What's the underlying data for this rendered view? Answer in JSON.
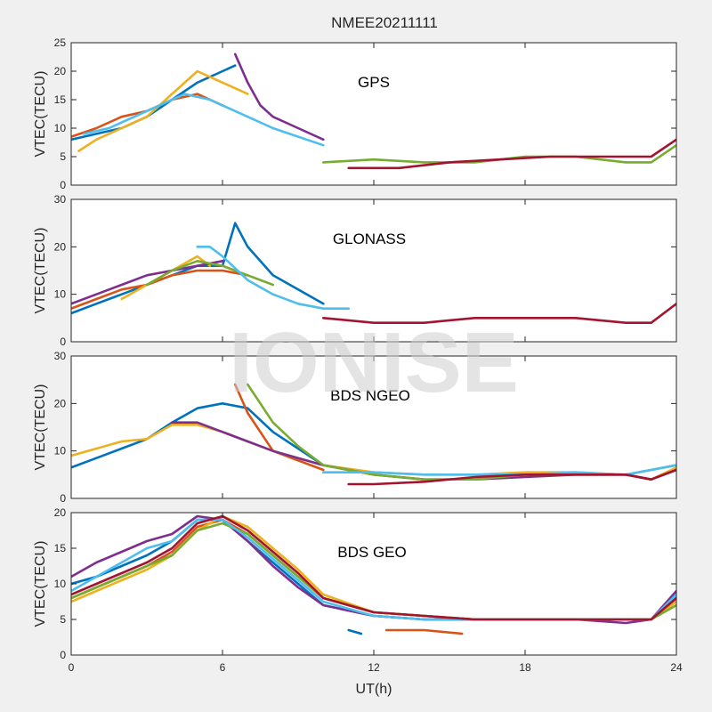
{
  "title": "NMEE20211111",
  "watermark": "IONISE",
  "xlabel": "UT(h)",
  "xlim": [
    0,
    24
  ],
  "xticks": [
    0,
    6,
    12,
    18,
    24
  ],
  "colors": [
    "#0072BD",
    "#D95319",
    "#EDB120",
    "#7E2F8E",
    "#77AC30",
    "#4DBEEE",
    "#A2142F"
  ],
  "chart_data": [
    {
      "type": "line",
      "label": "GPS",
      "ylabel": "VTEC(TECU)",
      "ylim": [
        0,
        25
      ],
      "yticks": [
        0,
        5,
        10,
        15,
        20,
        25
      ],
      "series": [
        {
          "x": [
            0,
            1,
            2,
            3,
            4,
            5,
            6,
            6.5
          ],
          "y": [
            8,
            9,
            10,
            12,
            15,
            18,
            20,
            21
          ]
        },
        {
          "x": [
            0,
            1,
            2,
            3,
            4,
            5,
            6
          ],
          "y": [
            8.5,
            10,
            12,
            13,
            15,
            16,
            14
          ]
        },
        {
          "x": [
            0.3,
            1,
            2,
            3,
            4,
            5,
            6,
            7
          ],
          "y": [
            6,
            8,
            10,
            12,
            16,
            20,
            18,
            16
          ]
        },
        {
          "x": [
            6.5,
            7,
            7.5,
            8,
            9,
            10
          ],
          "y": [
            23,
            18,
            14,
            12,
            10,
            8
          ]
        },
        {
          "x": [
            10,
            12,
            14,
            16,
            18,
            20,
            22,
            23,
            24
          ],
          "y": [
            4,
            4.5,
            4,
            4,
            5,
            5,
            4,
            4,
            7
          ]
        },
        {
          "x": [
            0.5,
            1.5,
            2.5,
            3.5,
            4.5,
            5.5,
            6.5,
            8,
            10
          ],
          "y": [
            9,
            10,
            12,
            14,
            16,
            15,
            13,
            10,
            7
          ]
        },
        {
          "x": [
            11,
            13,
            15,
            17,
            19,
            21,
            22,
            23,
            24
          ],
          "y": [
            3,
            3,
            4,
            4.5,
            5,
            5,
            5,
            5,
            8
          ]
        }
      ]
    },
    {
      "type": "line",
      "label": "GLONASS",
      "ylabel": "VTEC(TECU)",
      "ylim": [
        0,
        30
      ],
      "yticks": [
        0,
        10,
        20,
        30
      ],
      "series": [
        {
          "x": [
            0,
            1,
            2,
            3,
            4,
            5,
            6,
            6.5,
            7,
            8,
            10
          ],
          "y": [
            6,
            8,
            10,
            12,
            14,
            16,
            16,
            25,
            20,
            14,
            8
          ]
        },
        {
          "x": [
            0,
            1,
            2,
            3,
            4,
            5,
            6,
            7
          ],
          "y": [
            7,
            9,
            11,
            12,
            14,
            15,
            15,
            14
          ]
        },
        {
          "x": [
            2,
            3,
            4,
            5,
            5.5
          ],
          "y": [
            9,
            12,
            15,
            18,
            16
          ]
        },
        {
          "x": [
            0,
            1,
            2,
            3,
            4,
            5,
            6
          ],
          "y": [
            8,
            10,
            12,
            14,
            15,
            16,
            17
          ]
        },
        {
          "x": [
            3,
            4,
            5,
            6,
            7,
            8
          ],
          "y": [
            12,
            15,
            17,
            16,
            14,
            12
          ]
        },
        {
          "x": [
            5,
            5.5,
            6,
            7,
            8,
            9,
            10,
            11
          ],
          "y": [
            20,
            20,
            18,
            13,
            10,
            8,
            7,
            7
          ]
        },
        {
          "x": [
            10,
            12,
            14,
            16,
            18,
            20,
            22,
            23,
            24
          ],
          "y": [
            5,
            4,
            4,
            5,
            5,
            5,
            4,
            4,
            8
          ]
        }
      ]
    },
    {
      "type": "line",
      "label": "BDS NGEO",
      "ylabel": "VTEC(TECU)",
      "ylim": [
        0,
        30
      ],
      "yticks": [
        0,
        10,
        20,
        30
      ],
      "series": [
        {
          "x": [
            0,
            1,
            2,
            3,
            4,
            5,
            6,
            7,
            8,
            10
          ],
          "y": [
            6.5,
            8.5,
            10.5,
            12.5,
            16,
            19,
            20,
            19,
            14,
            7
          ]
        },
        {
          "x": [
            6.5,
            7,
            7.5,
            8,
            10
          ],
          "y": [
            24,
            18,
            14,
            10,
            6
          ]
        },
        {
          "x": [
            0,
            1,
            2,
            3,
            4,
            5,
            6,
            7,
            8,
            10,
            12,
            14,
            16,
            18,
            20,
            22,
            23,
            24
          ],
          "y": [
            9,
            10.5,
            12,
            12.5,
            15.5,
            15.5,
            14,
            12,
            10,
            7,
            5.5,
            5,
            5,
            5.5,
            5.5,
            5,
            4,
            6.5
          ]
        },
        {
          "x": [
            4,
            5,
            6,
            7,
            8,
            10,
            12,
            14,
            16,
            18,
            20,
            22,
            23,
            24
          ],
          "y": [
            16,
            16,
            14,
            12,
            10,
            7,
            5,
            4,
            4,
            4.5,
            5,
            5,
            4,
            6
          ]
        },
        {
          "x": [
            7,
            7.5,
            8,
            9,
            10,
            12,
            14,
            16,
            18,
            20,
            22,
            24
          ],
          "y": [
            24,
            20,
            16,
            11,
            7,
            5,
            4,
            4,
            5,
            5,
            5,
            7
          ]
        },
        {
          "x": [
            10,
            12,
            14,
            16,
            18,
            20,
            22,
            24
          ],
          "y": [
            5.5,
            5.5,
            5,
            5,
            5,
            5.5,
            5,
            7
          ]
        },
        {
          "x": [
            11,
            12,
            14,
            16,
            18,
            20,
            22,
            23,
            24
          ],
          "y": [
            3,
            3,
            3.5,
            4.5,
            5,
            5,
            5,
            4,
            6
          ]
        }
      ]
    },
    {
      "type": "line",
      "label": "BDS GEO",
      "ylabel": "VTEC(TECU)",
      "ylim": [
        0,
        20
      ],
      "yticks": [
        0,
        5,
        10,
        15,
        20
      ],
      "series": [
        {
          "x": [
            0,
            1,
            2,
            3,
            4,
            5,
            6,
            7,
            8,
            9,
            10,
            12,
            14,
            16,
            18,
            20,
            22,
            23,
            24
          ],
          "y": [
            10,
            11,
            12.5,
            14,
            16,
            19,
            19,
            16,
            13,
            10,
            7,
            5.5,
            5,
            5,
            5,
            5,
            5,
            5,
            8
          ]
        },
        {
          "x": [
            0,
            1,
            2,
            3,
            4,
            5,
            6,
            7,
            8,
            9,
            10,
            12,
            14,
            16,
            18,
            20,
            22,
            23,
            24
          ],
          "y": [
            8,
            9.5,
            11,
            12.5,
            14.5,
            18,
            19,
            17,
            14,
            11,
            8,
            6,
            5.5,
            5,
            5,
            5,
            5,
            5,
            8
          ]
        },
        {
          "x": [
            0,
            1,
            2,
            3,
            4,
            5,
            6,
            7,
            8,
            9,
            10,
            12,
            14,
            16,
            18,
            20,
            22,
            23,
            24
          ],
          "y": [
            7.5,
            9,
            10.5,
            12,
            14,
            17.5,
            19.5,
            18,
            15,
            12,
            8.5,
            6,
            5.5,
            5,
            5,
            5,
            5,
            5,
            7.5
          ]
        },
        {
          "x": [
            0,
            1,
            2,
            3,
            4,
            5,
            6,
            7,
            8,
            9,
            10,
            12,
            14,
            16,
            18,
            20,
            22,
            23,
            24
          ],
          "y": [
            11,
            13,
            14.5,
            16,
            17,
            19.5,
            19,
            16,
            12.5,
            9.5,
            7,
            5.5,
            5,
            5,
            5,
            5,
            4.5,
            5,
            9
          ]
        },
        {
          "x": [
            0,
            1,
            2,
            3,
            4,
            5,
            6,
            7,
            8,
            9,
            10,
            12,
            14,
            16,
            18,
            20,
            22,
            23,
            24
          ],
          "y": [
            8,
            9.5,
            11,
            12.5,
            14,
            17.5,
            18.5,
            17,
            14,
            11,
            8,
            6,
            5.5,
            5,
            5,
            5,
            5,
            5,
            7
          ]
        },
        {
          "x": [
            0,
            1,
            2,
            3,
            4,
            5,
            6,
            7,
            8,
            9,
            10,
            12,
            14,
            16,
            18,
            20,
            22,
            23,
            24
          ],
          "y": [
            9,
            11,
            13,
            15,
            16,
            19,
            19,
            16.5,
            13.5,
            10.5,
            7.5,
            5.5,
            5,
            5,
            5,
            5,
            5,
            5,
            8.5
          ]
        },
        {
          "x": [
            0,
            1,
            2,
            3,
            4,
            5,
            6,
            7,
            8,
            9,
            10,
            12,
            14,
            16,
            18,
            20,
            22,
            23,
            24
          ],
          "y": [
            8.5,
            10,
            11.5,
            13,
            15,
            18.5,
            19.5,
            17.5,
            14.5,
            11.5,
            8,
            6,
            5.5,
            5,
            5,
            5,
            5,
            5,
            8
          ]
        },
        {
          "x": [
            11,
            11.5
          ],
          "y": [
            3.5,
            3
          ]
        },
        {
          "x": [
            12.5,
            14,
            15.5
          ],
          "y": [
            3.5,
            3.5,
            3
          ]
        }
      ]
    }
  ]
}
